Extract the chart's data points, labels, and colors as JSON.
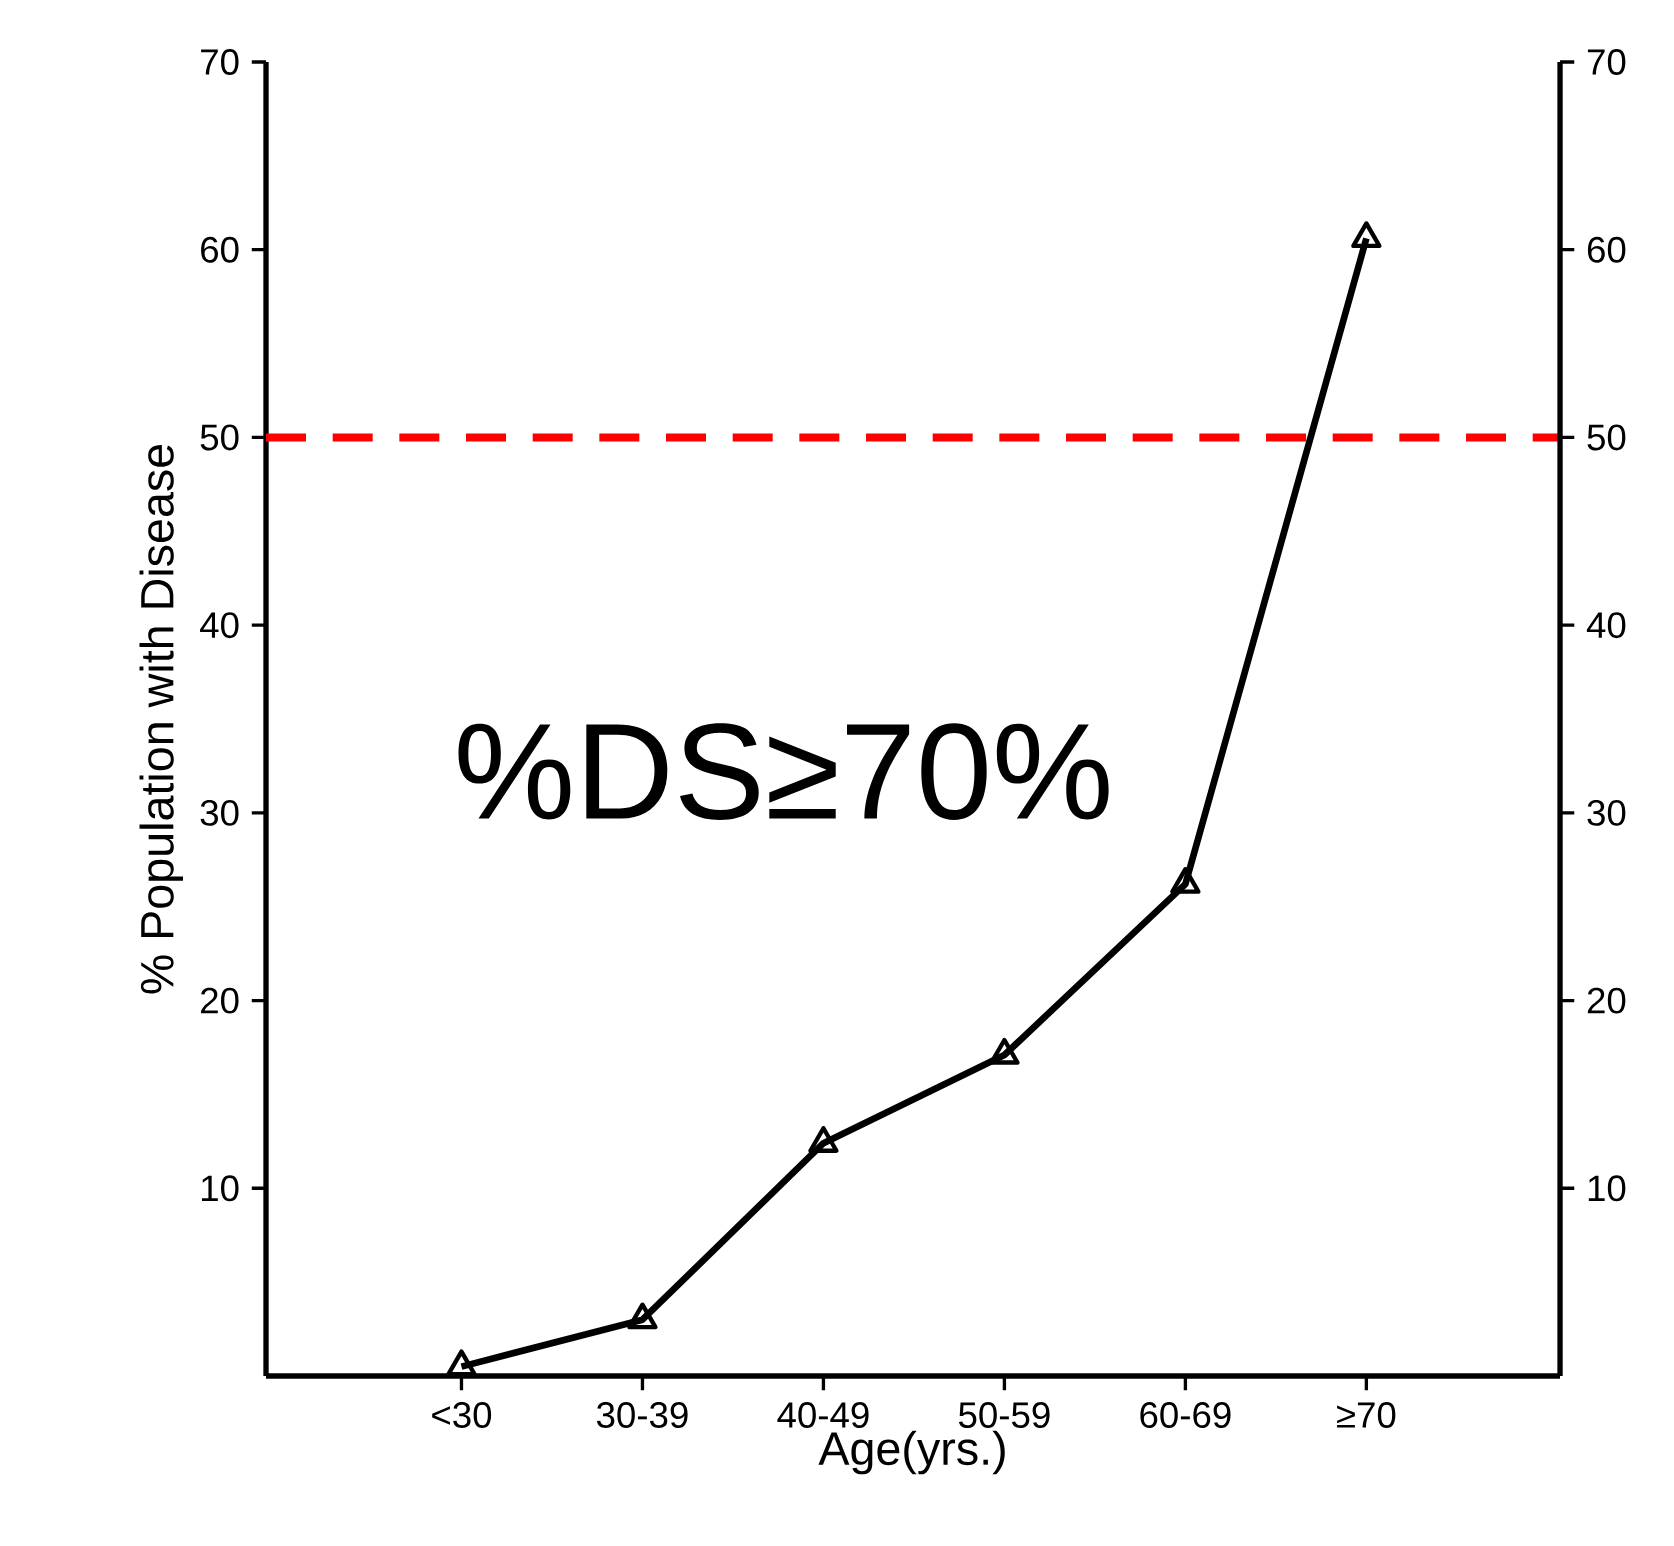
{
  "chart_data": {
    "type": "line",
    "xlabel": "Age(yrs.)",
    "ylabel": "% Population with Disease",
    "categories": [
      "<30",
      "30-39",
      "40-49",
      "50-59",
      "60-69",
      "≥70"
    ],
    "series": [
      {
        "color": "#000000",
        "values": [
          0.5,
          3.0,
          12.4,
          17.1,
          26.2,
          60.6
        ]
      }
    ],
    "ylim": [
      0,
      70
    ],
    "yticks": [
      10,
      20,
      30,
      40,
      50,
      60,
      70
    ],
    "y2lim": [
      0,
      70
    ],
    "y2ticks": [
      10,
      20,
      30,
      40,
      50,
      60,
      70
    ],
    "marker": "triangle",
    "line_style": "solid",
    "ref_lines": [
      {
        "axis": "y",
        "value": 50,
        "color": "#ff0000",
        "line_style": "dashed"
      }
    ],
    "annotations": [
      "%DS≥70%"
    ]
  }
}
